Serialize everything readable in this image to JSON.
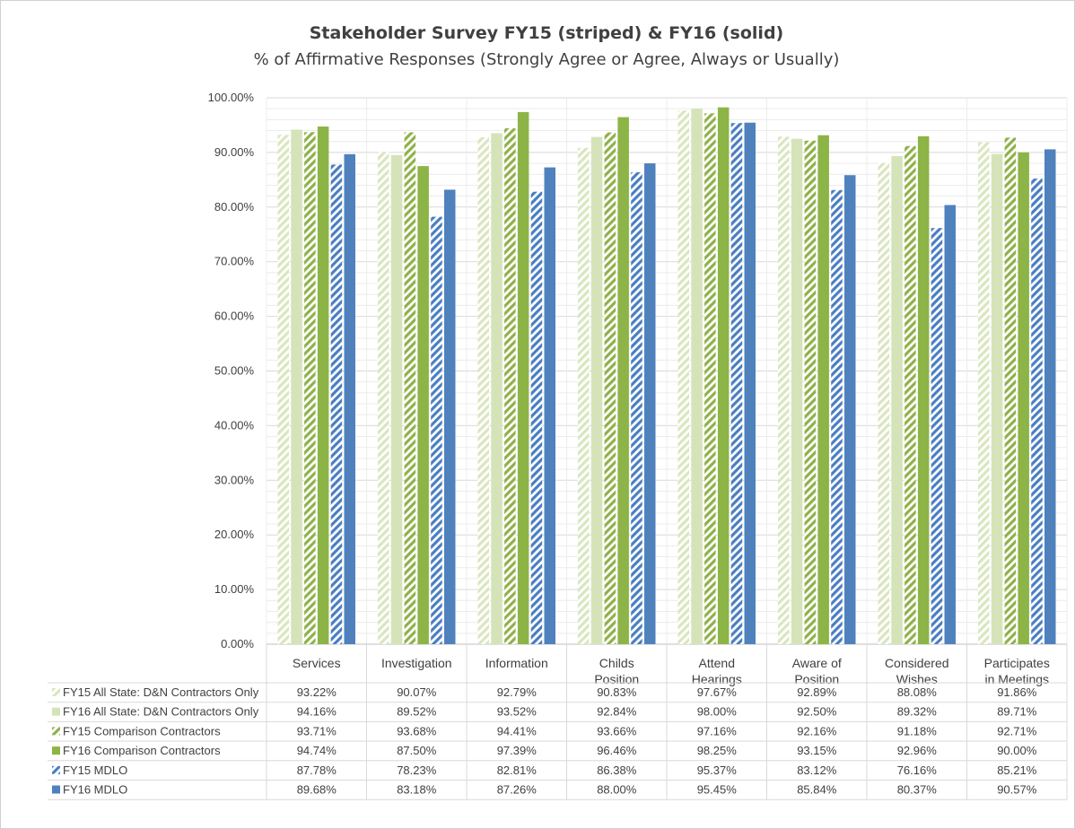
{
  "chart_data": {
    "type": "bar",
    "title": "Stakeholder Survey FY15 (striped) & FY16 (solid)",
    "subtitle": "% of Affirmative Responses (Strongly Agree or Agree, Always or Usually)",
    "categories": [
      [
        "Services"
      ],
      [
        "Investigation"
      ],
      [
        "Information"
      ],
      [
        "Childs",
        "Position"
      ],
      [
        "Attend",
        "Hearings"
      ],
      [
        "Aware of",
        "Position"
      ],
      [
        "Considered",
        "Wishes"
      ],
      [
        "Participates",
        "in Meetings"
      ]
    ],
    "ylim": [
      0,
      100
    ],
    "yticks": [
      "0.00%",
      "10.00%",
      "20.00%",
      "30.00%",
      "40.00%",
      "50.00%",
      "60.00%",
      "70.00%",
      "80.00%",
      "90.00%",
      "100.00%"
    ],
    "grid": true,
    "legend": "data-table",
    "series": [
      {
        "name": "FY15 All State: D&N Contractors Only",
        "color": "#d9e6bf",
        "pattern": "striped",
        "values": [
          93.22,
          90.07,
          92.79,
          90.83,
          97.67,
          92.89,
          88.08,
          91.86
        ],
        "labels": [
          "93.22%",
          "90.07%",
          "92.79%",
          "90.83%",
          "97.67%",
          "92.89%",
          "88.08%",
          "91.86%"
        ]
      },
      {
        "name": "FY16 All State: D&N Contractors Only",
        "color": "#d5e3b9",
        "pattern": "solid",
        "values": [
          94.16,
          89.52,
          93.52,
          92.84,
          98.0,
          92.5,
          89.32,
          89.71
        ],
        "labels": [
          "94.16%",
          "89.52%",
          "93.52%",
          "92.84%",
          "98.00%",
          "92.50%",
          "89.32%",
          "89.71%"
        ]
      },
      {
        "name": "FY15 Comparison Contractors",
        "color": "#8fb14a",
        "pattern": "striped",
        "values": [
          93.71,
          93.68,
          94.41,
          93.66,
          97.16,
          92.16,
          91.18,
          92.71
        ],
        "labels": [
          "93.71%",
          "93.68%",
          "94.41%",
          "93.66%",
          "97.16%",
          "92.16%",
          "91.18%",
          "92.71%"
        ]
      },
      {
        "name": "FY16 Comparison Contractors",
        "color": "#8db446",
        "pattern": "solid",
        "values": [
          94.74,
          87.5,
          97.39,
          96.46,
          98.25,
          93.15,
          92.96,
          90.0
        ],
        "labels": [
          "94.74%",
          "87.50%",
          "97.39%",
          "96.46%",
          "98.25%",
          "93.15%",
          "92.96%",
          "90.00%"
        ]
      },
      {
        "name": "FY15 MDLO",
        "color": "#4a7ec2",
        "pattern": "striped",
        "values": [
          87.78,
          78.23,
          82.81,
          86.38,
          95.37,
          83.12,
          76.16,
          85.21
        ],
        "labels": [
          "87.78%",
          "78.23%",
          "82.81%",
          "86.38%",
          "95.37%",
          "83.12%",
          "76.16%",
          "85.21%"
        ]
      },
      {
        "name": "FY16 MDLO",
        "color": "#4f81bd",
        "pattern": "solid",
        "values": [
          89.68,
          83.18,
          87.26,
          88.0,
          95.45,
          85.84,
          80.37,
          90.57
        ],
        "labels": [
          "89.68%",
          "83.18%",
          "87.26%",
          "88.00%",
          "95.45%",
          "85.84%",
          "80.37%",
          "90.57%"
        ]
      }
    ]
  }
}
